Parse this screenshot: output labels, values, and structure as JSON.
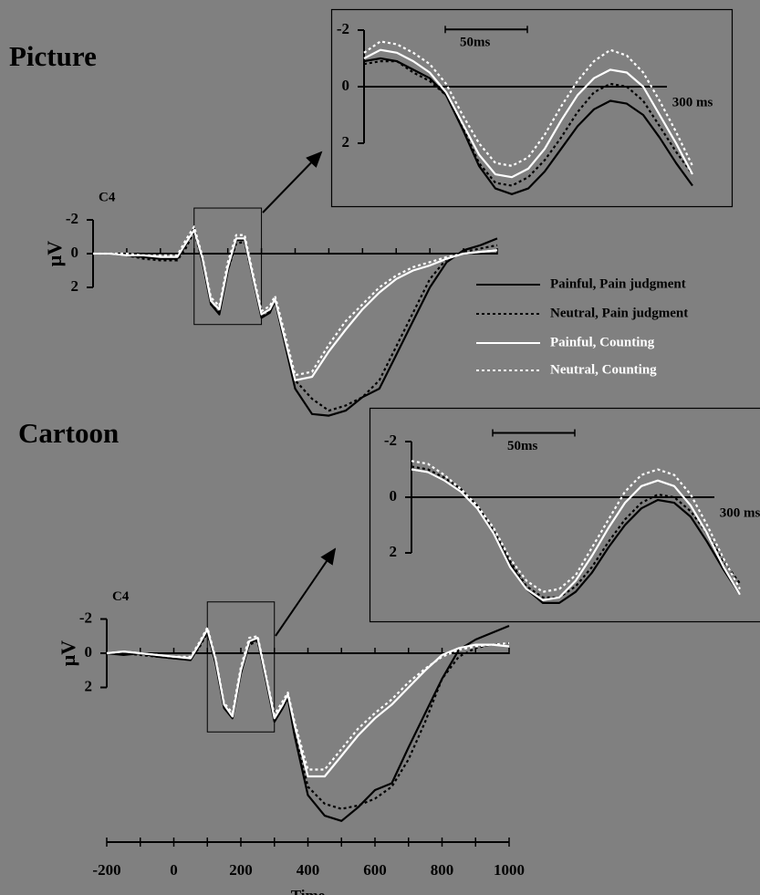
{
  "chart_data": [
    {
      "type": "line",
      "title": "Picture",
      "channel": "C4",
      "ylabel": "μV",
      "y_inverted": true,
      "legend": "right",
      "xlim": [
        -200,
        1000
      ],
      "ylim": [
        -3,
        10.5
      ],
      "yticks": [
        -2,
        0,
        2
      ],
      "x_tick_marks": [
        -200,
        -100,
        0,
        100,
        200,
        300,
        400,
        500,
        600,
        700,
        800,
        900,
        1000
      ],
      "x": [
        -200,
        -150,
        -100,
        -50,
        0,
        50,
        75,
        100,
        125,
        150,
        175,
        200,
        225,
        250,
        275,
        300,
        325,
        340,
        360,
        400,
        450,
        500,
        550,
        600,
        650,
        700,
        750,
        800,
        850,
        900,
        950,
        1000
      ],
      "series": [
        {
          "name": "Painful, Pain judgment",
          "color": "#000000",
          "dash": false,
          "values": [
            0,
            0,
            0.1,
            0.2,
            0.3,
            0.3,
            -0.5,
            -1.5,
            0.5,
            3.0,
            3.6,
            1.0,
            -0.8,
            -0.8,
            1.5,
            3.8,
            3.5,
            2.8,
            4.5,
            8.0,
            9.5,
            9.6,
            9.3,
            8.5,
            8.0,
            6.0,
            4.0,
            2.0,
            0.5,
            -0.2,
            -0.5,
            -0.9
          ]
        },
        {
          "name": "Neutral, Pain judgment",
          "color": "#000000",
          "dash": true,
          "values": [
            0,
            0,
            0.1,
            0.3,
            0.4,
            0.4,
            -0.3,
            -1.3,
            0.5,
            3.0,
            3.5,
            1.0,
            -0.6,
            -0.7,
            1.5,
            3.7,
            3.4,
            2.8,
            4.5,
            7.5,
            8.6,
            9.3,
            9.0,
            8.5,
            7.5,
            5.5,
            3.5,
            1.5,
            0.3,
            -0.1,
            -0.3,
            -0.5
          ]
        },
        {
          "name": "Painful, Counting",
          "color": "#ffffff",
          "dash": false,
          "values": [
            0,
            0,
            0.1,
            0.1,
            0.2,
            0.2,
            -0.6,
            -1.4,
            0.3,
            2.8,
            3.3,
            0.8,
            -0.9,
            -0.9,
            1.4,
            3.6,
            3.3,
            2.7,
            4.3,
            7.5,
            7.3,
            5.8,
            4.5,
            3.3,
            2.3,
            1.5,
            1.0,
            0.7,
            0.3,
            0,
            -0.1,
            -0.2
          ]
        },
        {
          "name": "Neutral, Counting",
          "color": "#ffffff",
          "dash": true,
          "values": [
            0,
            0,
            0,
            0.1,
            0.1,
            0.1,
            -0.8,
            -1.6,
            0.2,
            2.6,
            3.1,
            0.5,
            -1.1,
            -1.1,
            1.2,
            3.4,
            3.1,
            2.5,
            4.0,
            7.2,
            7.0,
            5.4,
            4.0,
            3.0,
            2.0,
            1.3,
            0.8,
            0.5,
            0.2,
            0,
            -0.1,
            -0.2
          ]
        }
      ]
    },
    {
      "type": "line",
      "y_inverted": true,
      "xlim": [
        100,
        300
      ],
      "ylim": [
        -2.7,
        4.2
      ],
      "yticks": [
        -2,
        0,
        2
      ],
      "xticks": [
        {
          "value": 300,
          "label": "300 ms"
        }
      ],
      "scale_bar": {
        "value": 50,
        "label": "50ms"
      },
      "x": [
        100,
        110,
        120,
        130,
        140,
        150,
        160,
        170,
        180,
        190,
        200,
        210,
        220,
        230,
        240,
        250,
        260,
        270,
        280,
        290,
        300
      ],
      "series": [
        {
          "color": "#000000",
          "dash": false,
          "values": [
            -0.9,
            -1.0,
            -0.9,
            -0.6,
            -0.3,
            0.3,
            1.5,
            2.8,
            3.6,
            3.8,
            3.6,
            3.0,
            2.2,
            1.4,
            0.8,
            0.5,
            0.6,
            1.0,
            1.8,
            2.7,
            3.5
          ]
        },
        {
          "color": "#000000",
          "dash": true,
          "values": [
            -0.8,
            -0.9,
            -0.9,
            -0.5,
            -0.2,
            0.3,
            1.4,
            2.7,
            3.4,
            3.5,
            3.2,
            2.6,
            1.8,
            0.9,
            0.2,
            -0.1,
            0,
            0.5,
            1.4,
            2.3,
            3.1
          ]
        },
        {
          "color": "#ffffff",
          "dash": false,
          "values": [
            -1.0,
            -1.3,
            -1.2,
            -0.9,
            -0.5,
            0.2,
            1.3,
            2.4,
            3.1,
            3.2,
            2.9,
            2.2,
            1.2,
            0.3,
            -0.3,
            -0.6,
            -0.5,
            0,
            1.0,
            2.0,
            3.1
          ]
        },
        {
          "color": "#ffffff",
          "dash": true,
          "values": [
            -1.2,
            -1.6,
            -1.5,
            -1.2,
            -0.8,
            -0.1,
            1.0,
            2.0,
            2.7,
            2.8,
            2.5,
            1.7,
            0.7,
            -0.2,
            -0.9,
            -1.3,
            -1.1,
            -0.5,
            0.5,
            1.6,
            2.8
          ]
        }
      ]
    },
    {
      "type": "line",
      "title": "Cartoon",
      "channel": "C4",
      "ylabel": "μV",
      "xlabel": "Time",
      "y_inverted": true,
      "xlim": [
        -200,
        1000
      ],
      "ylim": [
        -3,
        10.5
      ],
      "yticks": [
        -2,
        0,
        2
      ],
      "xticks": [
        -200,
        0,
        200,
        400,
        600,
        800,
        1000
      ],
      "x_tick_marks": [
        -200,
        -100,
        0,
        100,
        200,
        300,
        400,
        500,
        600,
        700,
        800,
        900,
        1000
      ],
      "x": [
        -200,
        -150,
        -100,
        -50,
        0,
        50,
        75,
        100,
        125,
        150,
        175,
        200,
        225,
        250,
        275,
        300,
        325,
        340,
        360,
        400,
        450,
        500,
        550,
        600,
        650,
        700,
        750,
        800,
        850,
        900,
        950,
        1000
      ],
      "series": [
        {
          "color": "#000000",
          "dash": false,
          "values": [
            0,
            0.1,
            0,
            0.2,
            0.3,
            0.4,
            -0.4,
            -1.3,
            0.6,
            3.2,
            3.8,
            1.2,
            -0.6,
            -0.8,
            1.6,
            4.0,
            3.2,
            2.6,
            4.8,
            8.3,
            9.5,
            9.8,
            9.0,
            8.0,
            7.6,
            5.5,
            3.5,
            1.5,
            -0.2,
            -0.8,
            -1.2,
            -1.6
          ]
        },
        {
          "color": "#000000",
          "dash": true,
          "values": [
            0,
            0,
            0.1,
            0.2,
            0.3,
            0.3,
            -0.3,
            -1.2,
            0.6,
            3.1,
            3.7,
            1.1,
            -0.5,
            -0.7,
            1.5,
            3.9,
            3.1,
            2.5,
            4.6,
            7.8,
            8.8,
            9.1,
            8.9,
            8.5,
            7.8,
            6.2,
            4.0,
            1.5,
            0.2,
            -0.3,
            -0.5,
            -0.6
          ]
        },
        {
          "color": "#ffffff",
          "dash": false,
          "values": [
            0,
            -0.1,
            0,
            0.1,
            0.2,
            0.3,
            -0.5,
            -1.4,
            0.4,
            3.0,
            3.7,
            1.0,
            -0.7,
            -0.9,
            1.4,
            3.8,
            3.0,
            2.4,
            4.2,
            7.2,
            7.2,
            6.0,
            4.8,
            3.8,
            3.0,
            2.0,
            1.0,
            0.1,
            -0.3,
            -0.5,
            -0.5,
            -0.4
          ]
        },
        {
          "color": "#ffffff",
          "dash": true,
          "values": [
            0,
            -0.1,
            0,
            0.1,
            0.2,
            0.2,
            -0.6,
            -1.5,
            0.3,
            2.9,
            3.5,
            0.8,
            -0.9,
            -1.0,
            1.3,
            3.6,
            2.8,
            2.3,
            4.0,
            6.8,
            6.8,
            5.6,
            4.4,
            3.5,
            2.7,
            1.7,
            0.9,
            0.2,
            -0.2,
            -0.4,
            -0.5,
            -0.6
          ]
        }
      ]
    },
    {
      "type": "line",
      "y_inverted": true,
      "xlim": [
        100,
        300
      ],
      "ylim": [
        -3,
        4.6
      ],
      "yticks": [
        -2,
        0,
        2
      ],
      "xticks": [
        {
          "value": 300,
          "label": "300 ms"
        }
      ],
      "scale_bar": {
        "value": 50,
        "label": "50ms"
      },
      "x": [
        100,
        110,
        120,
        130,
        140,
        150,
        160,
        170,
        180,
        190,
        200,
        210,
        220,
        230,
        240,
        250,
        260,
        270,
        280,
        290,
        300
      ],
      "series": [
        {
          "color": "#000000",
          "dash": false,
          "values": [
            -1.0,
            -0.9,
            -0.6,
            -0.2,
            0.4,
            1.3,
            2.4,
            3.3,
            3.8,
            3.8,
            3.4,
            2.7,
            1.8,
            1.0,
            0.4,
            0.1,
            0.2,
            0.7,
            1.6,
            2.6,
            3.5
          ]
        },
        {
          "color": "#000000",
          "dash": true,
          "values": [
            -1.1,
            -1.0,
            -0.7,
            -0.3,
            0.3,
            1.2,
            2.3,
            3.2,
            3.6,
            3.6,
            3.2,
            2.5,
            1.6,
            0.8,
            0.2,
            -0.1,
            0,
            0.5,
            1.3,
            2.3,
            3.1
          ]
        },
        {
          "color": "#ffffff",
          "dash": false,
          "values": [
            -1.0,
            -0.9,
            -0.6,
            -0.2,
            0.4,
            1.3,
            2.5,
            3.3,
            3.7,
            3.6,
            3.0,
            2.1,
            1.1,
            0.2,
            -0.4,
            -0.6,
            -0.4,
            0.3,
            1.3,
            2.5,
            3.5
          ]
        },
        {
          "color": "#ffffff",
          "dash": true,
          "values": [
            -1.3,
            -1.2,
            -0.8,
            -0.3,
            0.3,
            1.1,
            2.2,
            3.0,
            3.4,
            3.3,
            2.8,
            1.8,
            0.8,
            -0.2,
            -0.8,
            -1.0,
            -0.8,
            -0.1,
            1.0,
            2.2,
            3.3
          ]
        }
      ]
    }
  ]
}
